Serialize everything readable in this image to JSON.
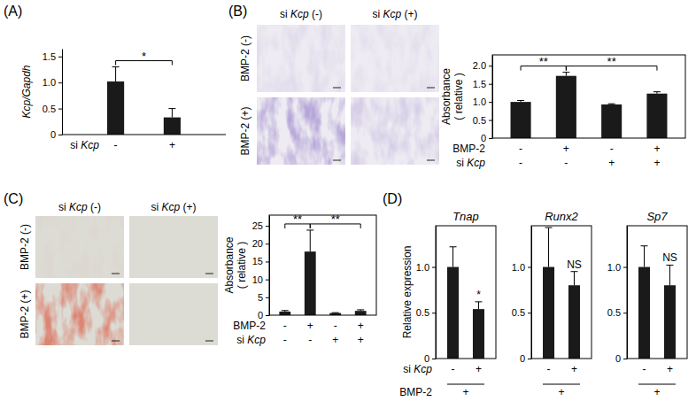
{
  "chart_data": [
    {
      "type": "bar",
      "panel": "(A)",
      "y_label": "Kcp/Gapdh",
      "values": [
        1.02,
        0.33
      ],
      "errors": [
        0.28,
        0.17
      ],
      "color": "#1a1a1a",
      "ylim": [
        0,
        1.65
      ],
      "yticks": [
        0,
        0.5,
        {
          "value": 1,
          "label": "1.0"
        },
        1.5
      ],
      "condition_rows": [
        {
          "label": "si Kcp",
          "values": [
            "-",
            "+"
          ]
        }
      ],
      "annotations": [
        {
          "text": "*",
          "pair": [
            0,
            1
          ]
        }
      ]
    },
    {
      "type": "bar",
      "panel": "(B)",
      "y_label": "Absorbance ( relative )",
      "values": [
        1.0,
        1.72,
        0.93,
        1.23
      ],
      "errors": [
        0.04,
        0.1,
        0.02,
        0.05
      ],
      "color": "#1a1a1a",
      "ylim": [
        0,
        2.3
      ],
      "yticks": [
        0,
        0.5,
        {
          "value": 1,
          "label": "1.0"
        },
        1.5,
        {
          "value": 2,
          "label": "2.0"
        }
      ],
      "condition_rows": [
        {
          "label": "BMP-2",
          "values": [
            "-",
            "+",
            "-",
            "+"
          ]
        },
        {
          "label": "si Kcp",
          "values": [
            "-",
            "-",
            "+",
            "+"
          ]
        }
      ],
      "annotations": [
        {
          "text": "**",
          "pair": [
            0,
            1
          ]
        },
        {
          "text": "**",
          "pair": [
            1,
            3
          ]
        }
      ]
    },
    {
      "type": "bar",
      "panel": "(C)",
      "y_label": "Absorbance ( relative )",
      "values": [
        1.0,
        17.8,
        0.6,
        1.2
      ],
      "errors": [
        0.3,
        6.0,
        0.1,
        0.3
      ],
      "color": "#1a1a1a",
      "ylim": [
        0,
        28
      ],
      "yticks": [
        0,
        5,
        10,
        15,
        20,
        25
      ],
      "condition_rows": [
        {
          "label": "BMP-2",
          "values": [
            "-",
            "+",
            "-",
            "+"
          ]
        },
        {
          "label": "si Kcp",
          "values": [
            "-",
            "-",
            "+",
            "+"
          ]
        }
      ],
      "annotations": [
        {
          "text": "**",
          "pair": [
            0,
            1
          ]
        },
        {
          "text": "**",
          "pair": [
            1,
            3
          ]
        }
      ]
    },
    {
      "type": "bar",
      "panel": "(D)",
      "title": "Tnap",
      "y_label": "Relative expression",
      "values": [
        1.0,
        0.54
      ],
      "errors": [
        0.22,
        0.08
      ],
      "color": "#1a1a1a",
      "ylim": [
        0,
        1.45
      ],
      "yticks": [
        0,
        0.5,
        {
          "value": 1,
          "label": "1.0"
        }
      ],
      "condition_rows": [
        {
          "label": "si Kcp",
          "values": [
            "-",
            "+"
          ]
        },
        {
          "label": "BMP-2",
          "values": [
            "+"
          ]
        }
      ],
      "annotations": [
        {
          "text": "*",
          "over": 1
        }
      ]
    },
    {
      "type": "bar",
      "title": "Runx2",
      "values": [
        1.0,
        0.8
      ],
      "errors": [
        0.43,
        0.15
      ],
      "color": "#1a1a1a",
      "ylim": [
        0,
        1.45
      ],
      "yticks": [
        0,
        0.5,
        {
          "value": 1,
          "label": "1.0"
        }
      ],
      "condition_rows": [
        {
          "values": [
            "-",
            "+"
          ]
        },
        {
          "values": [
            "+"
          ]
        }
      ],
      "annotations": [
        {
          "text": "NS",
          "over": 1
        }
      ]
    },
    {
      "type": "bar",
      "title": "Sp7",
      "values": [
        1.0,
        0.8
      ],
      "errors": [
        0.23,
        0.22
      ],
      "color": "#1a1a1a",
      "ylim": [
        0,
        1.45
      ],
      "yticks": [
        0,
        0.5,
        {
          "value": 1,
          "label": "1.0"
        }
      ],
      "condition_rows": [
        {
          "values": [
            "-",
            "+"
          ]
        },
        {
          "values": [
            "+"
          ]
        }
      ],
      "annotations": [
        {
          "text": "NS",
          "over": 1
        }
      ]
    }
  ],
  "image_panels": [
    {
      "columns": [
        "si Kcp (-)",
        "si Kcp (+)"
      ],
      "rows": [
        "BMP-2 (-)",
        "BMP-2 (+)"
      ]
    },
    {
      "columns": [
        "si Kcp (-)",
        "si Kcp (+)"
      ],
      "rows": [
        "BMP-2 (-)",
        "BMP-2 (+)"
      ]
    }
  ]
}
